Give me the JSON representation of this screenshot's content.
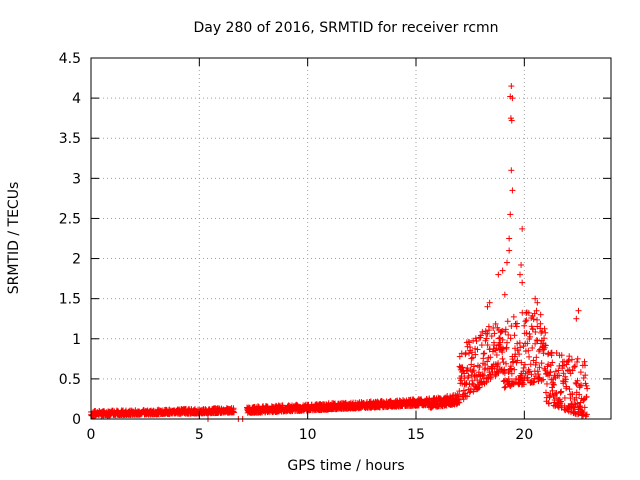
{
  "chart_data": {
    "type": "scatter",
    "title": "Day 280 of 2016, SRMTID for receiver rcmn",
    "xlabel": "GPS time / hours",
    "ylabel": "SRMTID / TECUs",
    "xlim": [
      0,
      24
    ],
    "ylim": [
      0,
      4.5
    ],
    "x_ticks": [
      "0",
      "5",
      "10",
      "15",
      "20"
    ],
    "x_tick_values": [
      0,
      5,
      10,
      15,
      20
    ],
    "y_ticks": [
      "0",
      "0.5",
      "1",
      "1.5",
      "2",
      "2.5",
      "3",
      "3.5",
      "4",
      "4.5"
    ],
    "y_tick_values": [
      0,
      0.5,
      1,
      1.5,
      2,
      2.5,
      3,
      3.5,
      4,
      4.5
    ],
    "grid": true,
    "marker": "+",
    "color": "#ff0000",
    "series": [
      {
        "name": "SRMTID",
        "segments": [
          {
            "x_start": 0.0,
            "x_end": 6.6,
            "base": 0.06,
            "trend": 0.04,
            "spread": 0.06
          },
          {
            "x_start": 7.2,
            "x_end": 15.6,
            "base": 0.1,
            "trend": 0.1,
            "spread": 0.08
          },
          {
            "x_start": 15.6,
            "x_end": 17.0,
            "base": 0.18,
            "trend": 0.05,
            "spread": 0.12
          },
          {
            "x_start": 17.0,
            "x_end": 19.0,
            "base": 0.45,
            "trend": 0.4,
            "spread": 0.7
          },
          {
            "x_start": 19.0,
            "x_end": 21.0,
            "base": 0.7,
            "trend": 0.1,
            "spread": 0.9
          },
          {
            "x_start": 21.0,
            "x_end": 22.9,
            "base": 0.45,
            "trend": -0.2,
            "spread": 0.7
          }
        ],
        "isolated_points": [
          {
            "x": 6.8,
            "y": 0.0
          },
          {
            "x": 7.0,
            "y": 0.0
          },
          {
            "x": 5.4,
            "y": 0.0
          }
        ],
        "peak_points": [
          {
            "x": 19.4,
            "y": 4.15
          },
          {
            "x": 19.35,
            "y": 4.02
          },
          {
            "x": 19.45,
            "y": 4.0
          },
          {
            "x": 19.38,
            "y": 3.75
          },
          {
            "x": 19.42,
            "y": 3.72
          },
          {
            "x": 19.4,
            "y": 3.1
          },
          {
            "x": 19.45,
            "y": 2.85
          },
          {
            "x": 19.35,
            "y": 2.55
          },
          {
            "x": 19.3,
            "y": 2.25
          },
          {
            "x": 19.9,
            "y": 2.37
          },
          {
            "x": 19.3,
            "y": 2.1
          },
          {
            "x": 19.2,
            "y": 1.95
          },
          {
            "x": 19.85,
            "y": 1.92
          },
          {
            "x": 19.0,
            "y": 1.85
          },
          {
            "x": 19.8,
            "y": 1.8
          },
          {
            "x": 19.9,
            "y": 1.7
          },
          {
            "x": 18.8,
            "y": 1.8
          },
          {
            "x": 19.1,
            "y": 1.55
          },
          {
            "x": 18.4,
            "y": 1.45
          },
          {
            "x": 18.3,
            "y": 1.4
          },
          {
            "x": 20.5,
            "y": 1.5
          },
          {
            "x": 20.6,
            "y": 1.45
          },
          {
            "x": 22.5,
            "y": 1.35
          },
          {
            "x": 22.4,
            "y": 1.25
          }
        ]
      }
    ]
  }
}
